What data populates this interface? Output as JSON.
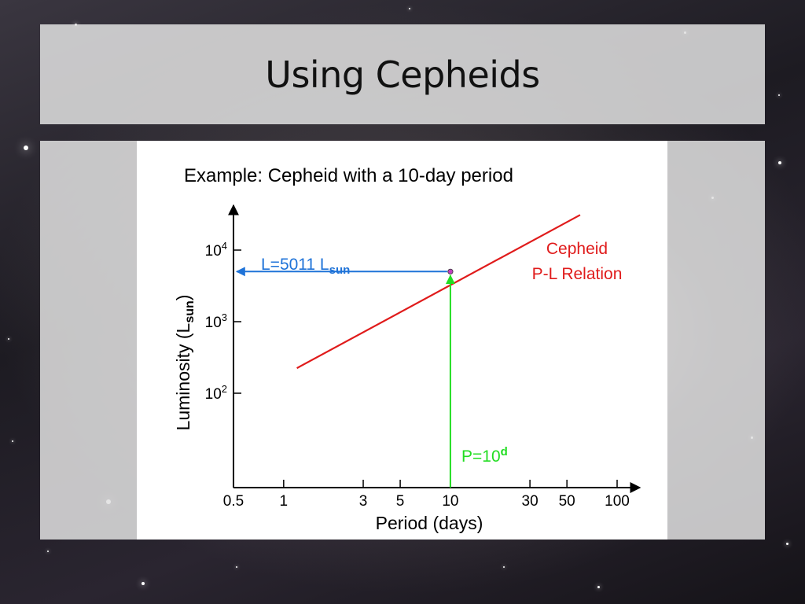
{
  "slide": {
    "title": "Using Cepheids"
  },
  "chart_data": {
    "type": "line",
    "title": "Example: Cepheid with a 10-day period",
    "xlabel": "Period (days)",
    "ylabel_main": "Luminosity (L",
    "ylabel_sub": "sun",
    "ylabel_close": ")",
    "x_scale": "log",
    "y_scale": "log",
    "xlim": [
      0.5,
      100
    ],
    "ylim": [
      10,
      10000
    ],
    "x_ticks": [
      {
        "value": 0.5,
        "label": "0.5"
      },
      {
        "value": 1,
        "label": "1"
      },
      {
        "value": 3,
        "label": "3"
      },
      {
        "value": 5,
        "label": "5"
      },
      {
        "value": 10,
        "label": "10"
      },
      {
        "value": 30,
        "label": "30"
      },
      {
        "value": 50,
        "label": "50"
      },
      {
        "value": 100,
        "label": "100"
      }
    ],
    "y_ticks": [
      {
        "value": 100,
        "base": "10",
        "exp": "2"
      },
      {
        "value": 1000,
        "base": "10",
        "exp": "3"
      },
      {
        "value": 10000,
        "base": "10",
        "exp": "4"
      }
    ],
    "series": [
      {
        "name": "Cepheid P-L Relation",
        "legend_line1": "Cepheid",
        "legend_line2": "P-L Relation",
        "color": "#e01b1b",
        "x": [
          1.2,
          60
        ],
        "y": [
          224,
          31000
        ]
      }
    ],
    "marker": {
      "x": 10,
      "y": 5011,
      "color": "#c040c0"
    },
    "annotations": {
      "luminosity": {
        "main": "L=5011 L",
        "sub": "sun",
        "color": "#1f73d8"
      },
      "period": {
        "main": "P=10",
        "sup": "d",
        "color": "#22dd22"
      }
    },
    "grid": false
  }
}
